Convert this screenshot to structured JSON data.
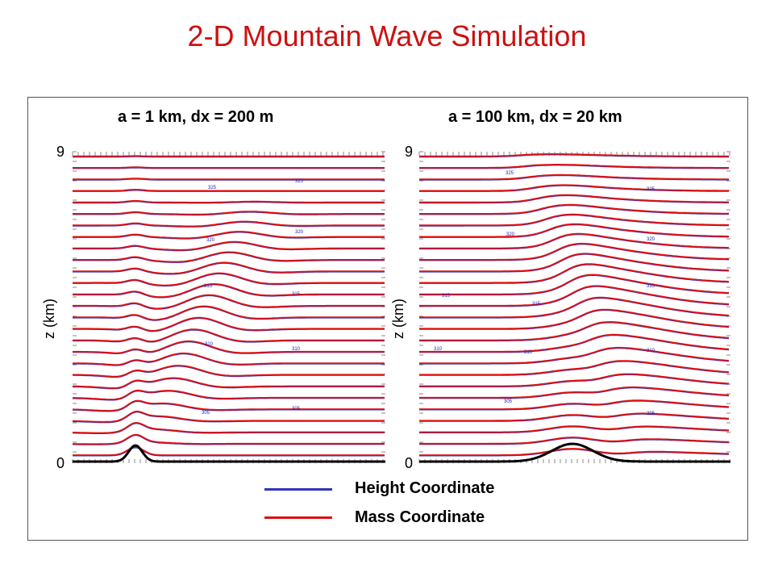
{
  "title": "2-D Mountain Wave Simulation",
  "colors": {
    "title": "#cc1111",
    "height_coordinate": "#3333bb",
    "mass_coordinate": "#dd1111",
    "terrain": "#000000"
  },
  "legend": [
    {
      "label": "Height Coordinate",
      "color": "#3333bb"
    },
    {
      "label": "Mass Coordinate",
      "color": "#dd1111"
    }
  ],
  "chart_data": [
    {
      "type": "line",
      "title": "a = 1 km,  dx = 200 m",
      "ylabel": "z (km)",
      "ylim": [
        0,
        9
      ],
      "yticks": [
        "9",
        "0"
      ],
      "contour_labels": [
        "325",
        "325",
        "320",
        "320",
        "315",
        "315",
        "310",
        "310",
        "305",
        "305"
      ],
      "grid": false
    },
    {
      "type": "line",
      "title": "a = 100 km, dx = 20 km",
      "ylabel": "z (km)",
      "ylim": [
        0,
        9
      ],
      "yticks": [
        "9",
        "0"
      ],
      "contour_labels": [
        "325",
        "325",
        "320",
        "320",
        "315",
        "315",
        "315",
        "310",
        "310",
        "310",
        "305",
        "305"
      ],
      "grid": false
    }
  ]
}
